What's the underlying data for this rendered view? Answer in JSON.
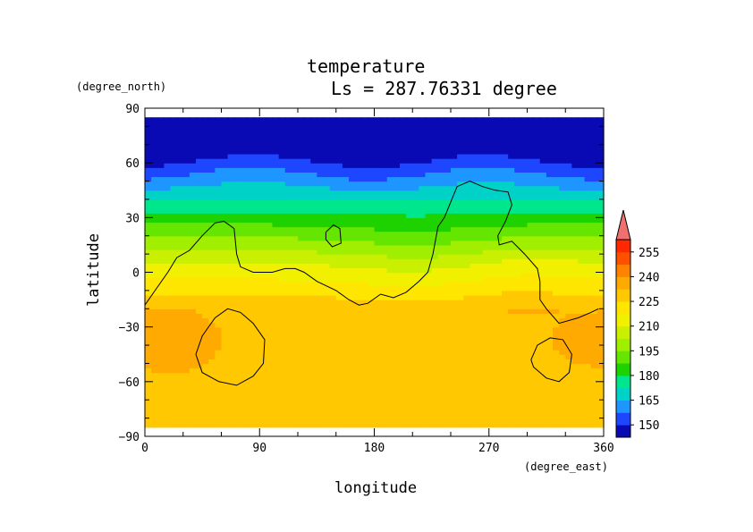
{
  "chart_data": {
    "type": "heatmap",
    "title": "temperature",
    "subtitle": "Ls = 287.76331 degree",
    "xlabel": "longitude",
    "ylabel": "latitude",
    "x_units": "(degree_east)",
    "y_units": "(degree_north)",
    "xlim": [
      0,
      360
    ],
    "ylim": [
      -90,
      90
    ],
    "x_ticks": [
      0,
      90,
      180,
      270,
      360
    ],
    "y_ticks": [
      90,
      60,
      30,
      0,
      -30,
      -60,
      -90
    ],
    "data_extent": {
      "lon": [
        0,
        360
      ],
      "lat": [
        -85,
        85
      ]
    },
    "colorbar": {
      "levels": [
        150,
        165,
        180,
        195,
        210,
        225,
        240,
        255
      ],
      "extend": "max",
      "colors": [
        "#0a0ab4",
        "#1e46ff",
        "#1e96ff",
        "#00d2c8",
        "#00e68c",
        "#1ed200",
        "#64e600",
        "#a0ee00",
        "#c8f000",
        "#f0f000",
        "#ffe600",
        "#ffc800",
        "#ffaa00",
        "#ff8200",
        "#ff5000",
        "#ff2800",
        "#f07070"
      ]
    },
    "grid": false,
    "legend": "right"
  },
  "lang": "en"
}
